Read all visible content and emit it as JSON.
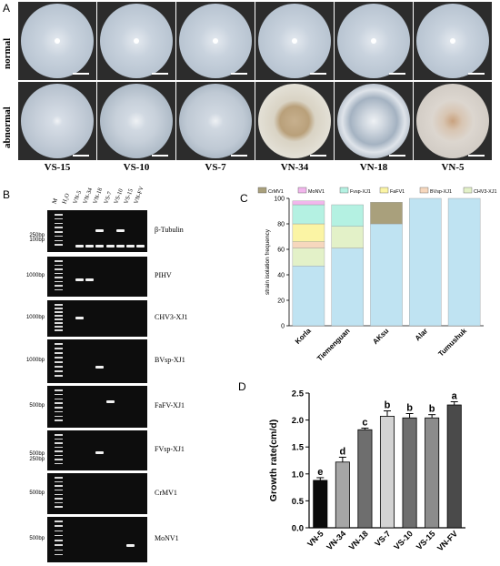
{
  "panel_labels": {
    "a": "A",
    "b": "B",
    "c": "C",
    "d": "D"
  },
  "panel_a": {
    "row_labels": [
      "normal",
      "abnormal"
    ],
    "strains": [
      "VS-15",
      "VS-10",
      "VS-7",
      "VN-34",
      "VN-18",
      "VN-5"
    ]
  },
  "panel_b": {
    "lanes": [
      "M",
      "H₂O",
      "VN-5",
      "VN-34",
      "VN-18",
      "VS-7",
      "VS-10",
      "VS-15",
      "VN-FV"
    ],
    "gels": [
      {
        "label": "β-Tubulin",
        "markers": [
          "250bp",
          "100bp"
        ]
      },
      {
        "label": "PIHV",
        "markers": [
          "1000bp"
        ]
      },
      {
        "label": "CHV3-XJ1",
        "markers": [
          "1000bp"
        ]
      },
      {
        "label": "BVsp-XJ1",
        "markers": [
          "1000bp"
        ]
      },
      {
        "label": "FaFV-XJ1",
        "markers": [
          "500bp"
        ]
      },
      {
        "label": "FVsp-XJ1",
        "markers": [
          "500bp",
          "250bp"
        ]
      },
      {
        "label": "CrMV1",
        "markers": [
          "500bp"
        ]
      },
      {
        "label": "MoNV1",
        "markers": [
          "500bp"
        ]
      }
    ]
  },
  "chart_data": [
    {
      "type": "bar",
      "stacked": true,
      "ylabel": "strain isolation frequency",
      "ylim": [
        0,
        100
      ],
      "yticks": [
        "0",
        "20",
        "40",
        "60",
        "80",
        "100"
      ],
      "categories": [
        "Korla",
        "Tiemenguan",
        "AKsu",
        "Alar",
        "Tumushuk"
      ],
      "legend_position": "top",
      "series": [
        {
          "name": "PIHV",
          "color": "#bfe3f2",
          "values": [
            47,
            61,
            80,
            100,
            100
          ]
        },
        {
          "name": "CHV3-XJ1",
          "color": "#e3f1c8",
          "values": [
            14,
            17,
            0,
            0,
            0
          ]
        },
        {
          "name": "BVsp-XJ1",
          "color": "#f6d7bd",
          "values": [
            5,
            0,
            0,
            0,
            0
          ]
        },
        {
          "name": "FaFV1",
          "color": "#fbf4a4",
          "values": [
            14,
            0,
            0,
            0,
            0
          ]
        },
        {
          "name": "Fvsp-XJ1",
          "color": "#b4f1e2",
          "values": [
            15,
            17,
            0,
            0,
            0
          ]
        },
        {
          "name": "MoNV1",
          "color": "#f2b6ec",
          "values": [
            3,
            0,
            0,
            0,
            0
          ]
        },
        {
          "name": "CrMV1",
          "color": "#a9a07c",
          "values": [
            0,
            0,
            17,
            0,
            0
          ]
        }
      ],
      "legend_order": [
        "CrMV1",
        "MoNV1",
        "Fvsp-XJ1",
        "FaFV1",
        "BVsp-XJ1",
        "CHV3-XJ1",
        "PIHV"
      ]
    },
    {
      "type": "bar",
      "ylabel": "Growth rate(cm/d)",
      "ylim": [
        0,
        2.5
      ],
      "yticks": [
        "0.0",
        "0.5",
        "1.0",
        "1.5",
        "2.0",
        "2.5"
      ],
      "categories": [
        "VN-5",
        "VN-34",
        "VN-18",
        "VS-7",
        "VS-10",
        "VS-15",
        "VN-FV"
      ],
      "values": [
        0.88,
        1.22,
        1.82,
        2.07,
        2.04,
        2.04,
        2.28
      ],
      "errors": [
        0.05,
        0.09,
        0.03,
        0.1,
        0.08,
        0.06,
        0.06
      ],
      "letters": [
        "e",
        "d",
        "c",
        "b",
        "b",
        "b",
        "a"
      ],
      "colors": [
        "#0a0a0a",
        "#a6a6a6",
        "#6e6e6e",
        "#d3d3d3",
        "#6e6e6e",
        "#8c8c8c",
        "#4a4a4a"
      ]
    }
  ]
}
